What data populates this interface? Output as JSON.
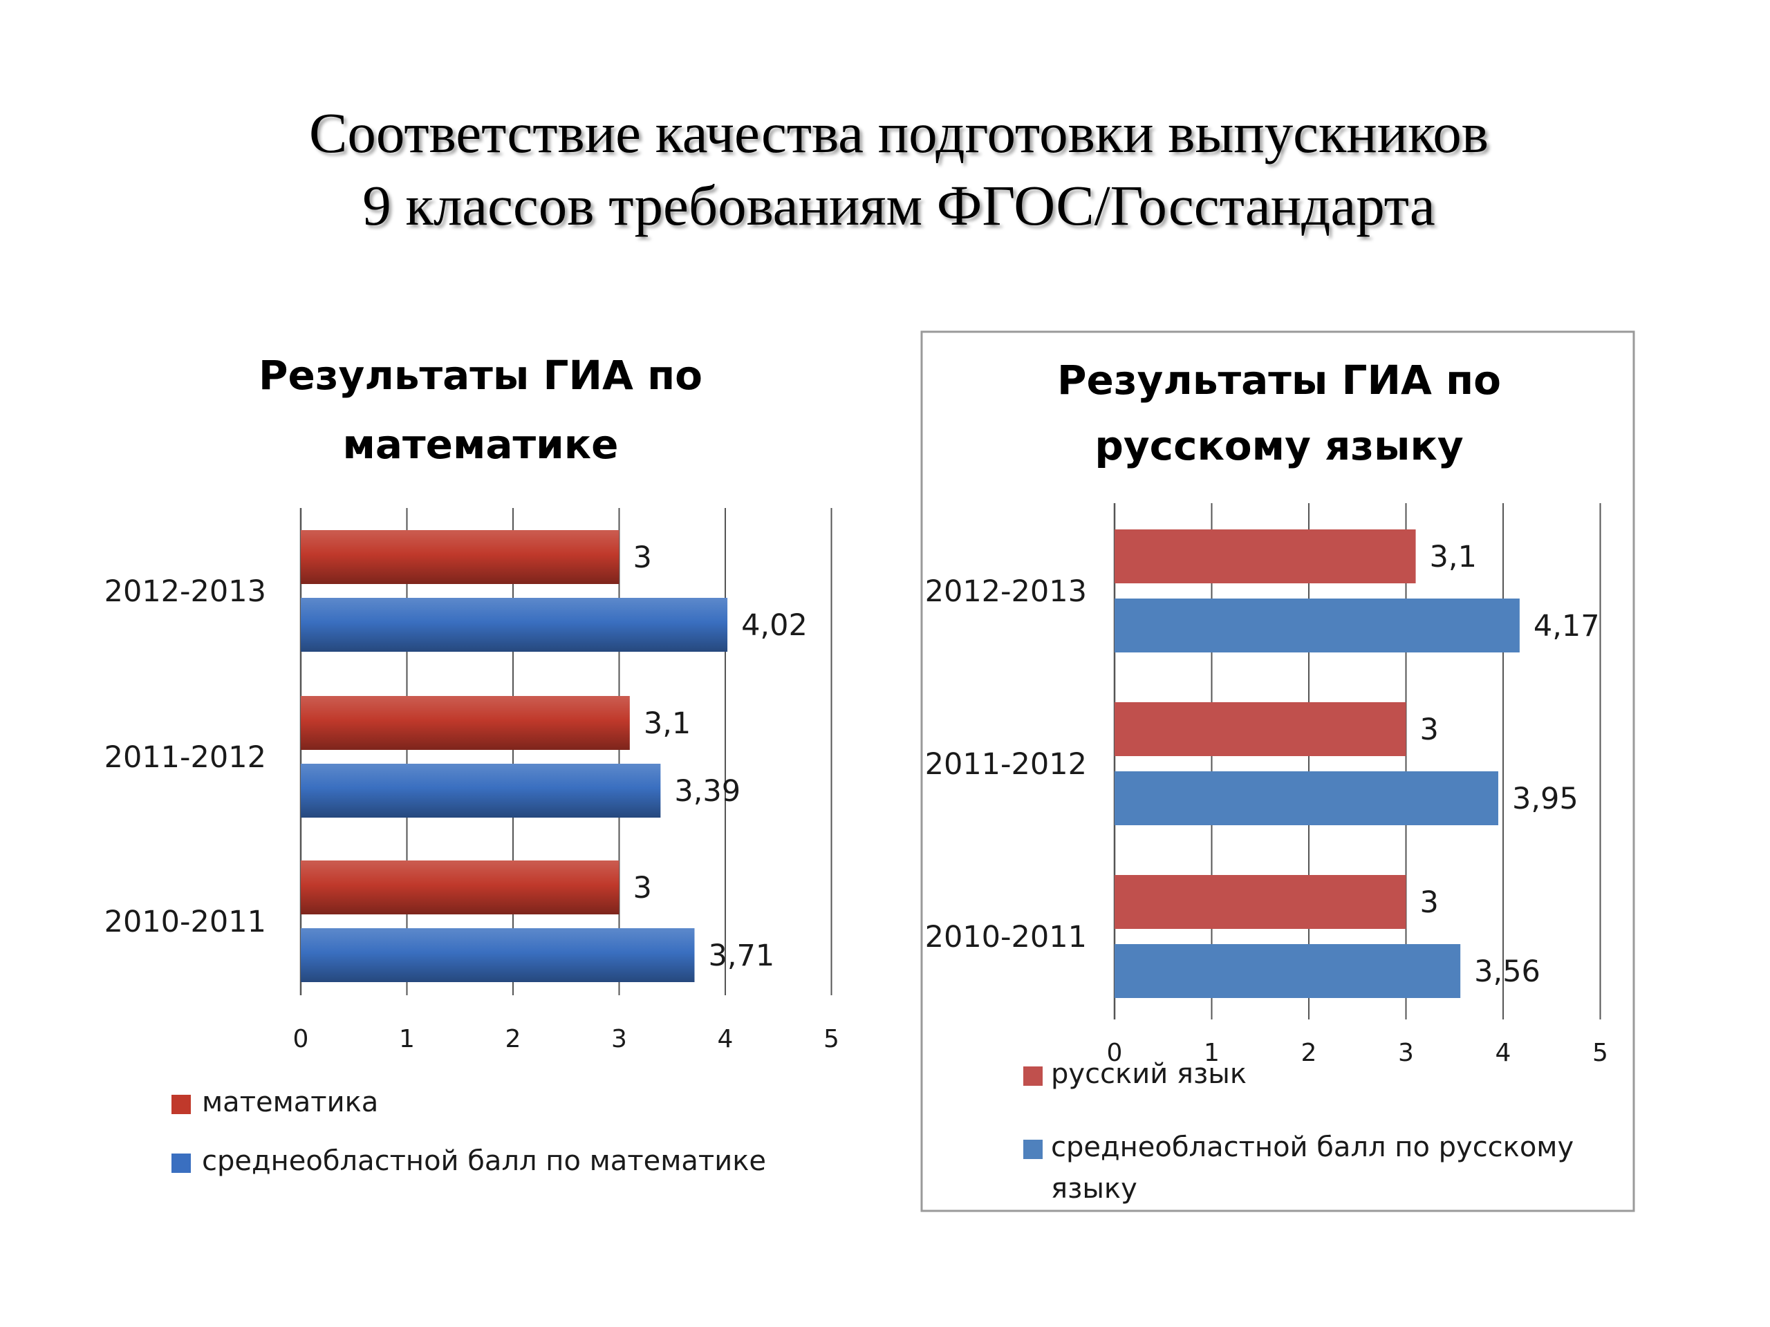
{
  "slide": {
    "title_lines": [
      "Соответствие качества подготовки выпускников",
      "9 классов требованиям ФГОС/Госстандарта"
    ]
  },
  "colors": {
    "red": "#c0392b",
    "blue": "#3a6fc0",
    "red_alt": "#c0504d",
    "blue_alt": "#4f81bd"
  },
  "chart_data": [
    {
      "type": "bar",
      "orientation": "horizontal",
      "title_lines": [
        "Результаты ГИА по",
        "математике"
      ],
      "categories": [
        "2012-2013",
        "2011-2012",
        "2010-2011"
      ],
      "series": [
        {
          "name": "математика",
          "values": [
            3,
            3.1,
            3
          ],
          "labels": [
            "3",
            "3,1",
            "3"
          ],
          "color": "#c0392b"
        },
        {
          "name": "среднеобластной балл по математике",
          "values": [
            4.02,
            3.39,
            3.71
          ],
          "labels": [
            "4,02",
            "3,39",
            "3,71"
          ],
          "color": "#3a6fc0"
        }
      ],
      "xlim": [
        0,
        5
      ],
      "xticks": [
        "0",
        "1",
        "2",
        "3",
        "4",
        "5"
      ],
      "grid": true,
      "legend_position": "bottom",
      "legend_lines": [
        [
          "математика"
        ],
        [
          "среднеобластной балл по математике"
        ]
      ],
      "framed": false
    },
    {
      "type": "bar",
      "orientation": "horizontal",
      "title_lines": [
        "Результаты ГИА по",
        "русскому языку"
      ],
      "categories": [
        "2012-2013",
        "2011-2012",
        "2010-2011"
      ],
      "series": [
        {
          "name": "русский язык",
          "values": [
            3.1,
            3,
            3
          ],
          "labels": [
            "3,1",
            "3",
            "3"
          ],
          "color": "#c0504d"
        },
        {
          "name": "среднеобластной балл по русскому языку",
          "values": [
            4.17,
            3.95,
            3.56
          ],
          "labels": [
            "4,17",
            "3,95",
            "3,56"
          ],
          "color": "#4f81bd"
        }
      ],
      "xlim": [
        0,
        5
      ],
      "xticks": [
        "0",
        "1",
        "2",
        "3",
        "4",
        "5"
      ],
      "grid": true,
      "legend_position": "bottom",
      "legend_lines": [
        [
          "русский язык"
        ],
        [
          "среднеобластной балл по русскому",
          "языку"
        ]
      ],
      "framed": true
    }
  ]
}
